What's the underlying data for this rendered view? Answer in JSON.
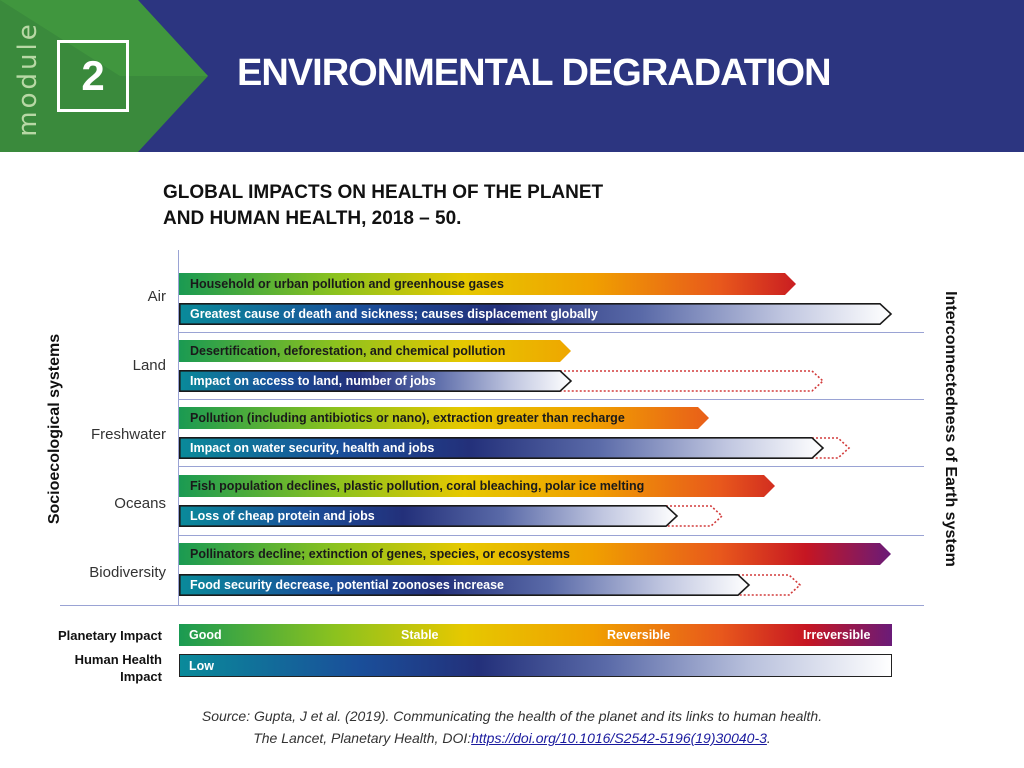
{
  "header": {
    "module_word": "module",
    "module_number": "2",
    "title": "ENVIRONMENTAL DEGRADATION"
  },
  "subtitle_lines": [
    "GLOBAL IMPACTS ON HEALTH OF THE PLANET",
    "AND HUMAN HEALTH, 2018 – 50."
  ],
  "axis_left": "Socioecological systems",
  "axis_right": "Interconnectedness of Earth system",
  "rows": [
    {
      "label": "Air",
      "planetary": "Household or urban pollution and greenhouse gases",
      "human": "Greatest cause of death and sickness; causes displacement globally"
    },
    {
      "label": "Land",
      "planetary": "Desertification, deforestation, and chemical pollution",
      "human": "Impact on access to land, number of jobs"
    },
    {
      "label": "Freshwater",
      "planetary": "Pollution (including antibiotics or nano), extraction greater than recharge",
      "human": "Impact on water security, health and jobs"
    },
    {
      "label": "Oceans",
      "planetary": "Fish population declines, plastic pollution, coral bleaching, polar ice melting",
      "human": "Loss of cheap protein and jobs"
    },
    {
      "label": "Biodiversity",
      "planetary": "Pollinators decline; extinction of genes, species, or ecosystems",
      "human": "Food security decrease, potential zoonoses increase"
    }
  ],
  "legend": {
    "planetary_label": "Planetary Impact",
    "human_label_lines": [
      "Human Health",
      "Impact"
    ],
    "scale": [
      "Good",
      "Stable",
      "Reversible",
      "Irreversible"
    ],
    "human_scale_low": "Low"
  },
  "source": {
    "line1": "Source: Gupta, J et al. (2019). Communicating the health of the planet and its links to human health.",
    "line2_prefix": "The Lancet, Planetary Health, DOI:",
    "link": "https://doi.org/10.1016/S2542-5196(19)30040-3",
    "line2_suffix": "."
  },
  "colors": {
    "header_bg": "#2c3580",
    "module_green": "#3a8a3c",
    "separator": "#9aa3d4",
    "dotted_red": "#d23b3b"
  }
}
